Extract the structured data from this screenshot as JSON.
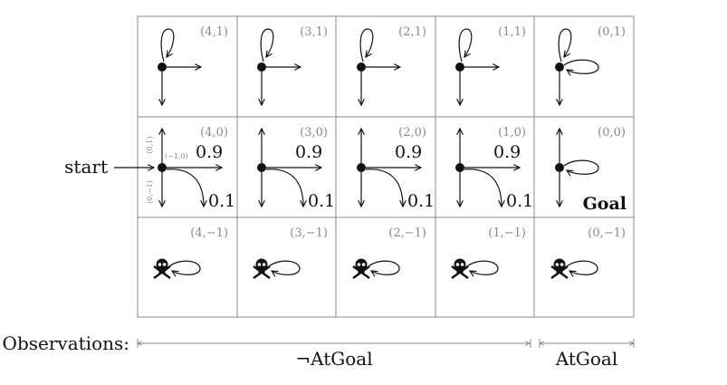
{
  "start_label": "start",
  "goal_label": "Goal",
  "probabilities": {
    "main": "0.9",
    "slip": "0.1"
  },
  "action_labels": {
    "left": "(−1,0)",
    "up": "(0,1)",
    "down": "(0,−1)"
  },
  "rows": [
    {
      "row": "top",
      "cells": [
        "(4,1)",
        "(3,1)",
        "(2,1)",
        "(1,1)",
        "(0,1)"
      ]
    },
    {
      "row": "middle",
      "cells": [
        "(4,0)",
        "(3,0)",
        "(2,0)",
        "(1,0)",
        "(0,0)"
      ]
    },
    {
      "row": "bottom",
      "cells": [
        "(4,−1)",
        "(3,−1)",
        "(2,−1)",
        "(1,−1)",
        "(0,−1)"
      ]
    }
  ],
  "observations": {
    "label": "Observations:",
    "not_at_goal": "¬AtGoal",
    "at_goal": "AtGoal"
  },
  "colors": {
    "grid": "#8a8a8a",
    "coord_text": "#888888",
    "ink": "#111111"
  },
  "icons": {
    "hazard": "skull-crossbones-icon",
    "state": "state-dot-icon"
  }
}
